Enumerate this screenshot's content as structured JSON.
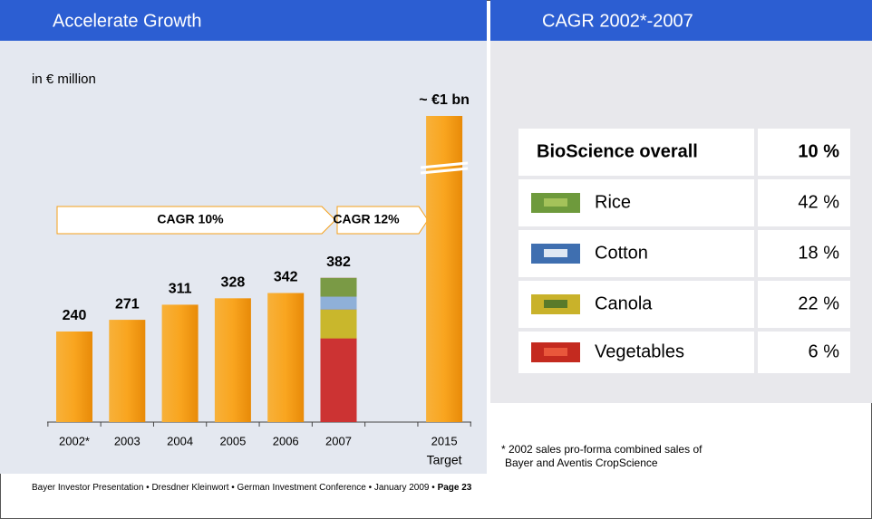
{
  "header": {
    "left_title": "Accelerate Growth",
    "right_title": "CAGR 2002*-2007"
  },
  "chart_data": {
    "type": "bar",
    "unit_label": "in € million",
    "categories": [
      "2002*",
      "2003",
      "2004",
      "2005",
      "2006",
      "2007",
      null,
      "2015"
    ],
    "x_sublabels": [
      null,
      null,
      null,
      null,
      null,
      null,
      null,
      "Target"
    ],
    "values": [
      240,
      271,
      311,
      328,
      342,
      382,
      null,
      1000
    ],
    "value_labels": [
      "240",
      "271",
      "311",
      "328",
      "342",
      "382",
      null,
      "~ €1 bn"
    ],
    "color": "#f5a01a",
    "annotations": [
      "CAGR 10%",
      "CAGR 12%"
    ]
  },
  "table": {
    "rows": [
      [
        "BioScience overall",
        "10 %"
      ],
      [
        "Rice",
        "42 %"
      ],
      [
        "Cotton",
        "18 %"
      ],
      [
        "Canola",
        "22 %"
      ],
      [
        "Vegetables",
        "6 %"
      ]
    ]
  },
  "footnote": [
    "* 2002 sales pro-forma combined sales of",
    "Bayer and Aventis CropScience"
  ],
  "footer": {
    "text": "Bayer Investor Presentation • Dresdner Kleinwort • German Investment Conference • January 2009 •",
    "page": "Page 23"
  }
}
